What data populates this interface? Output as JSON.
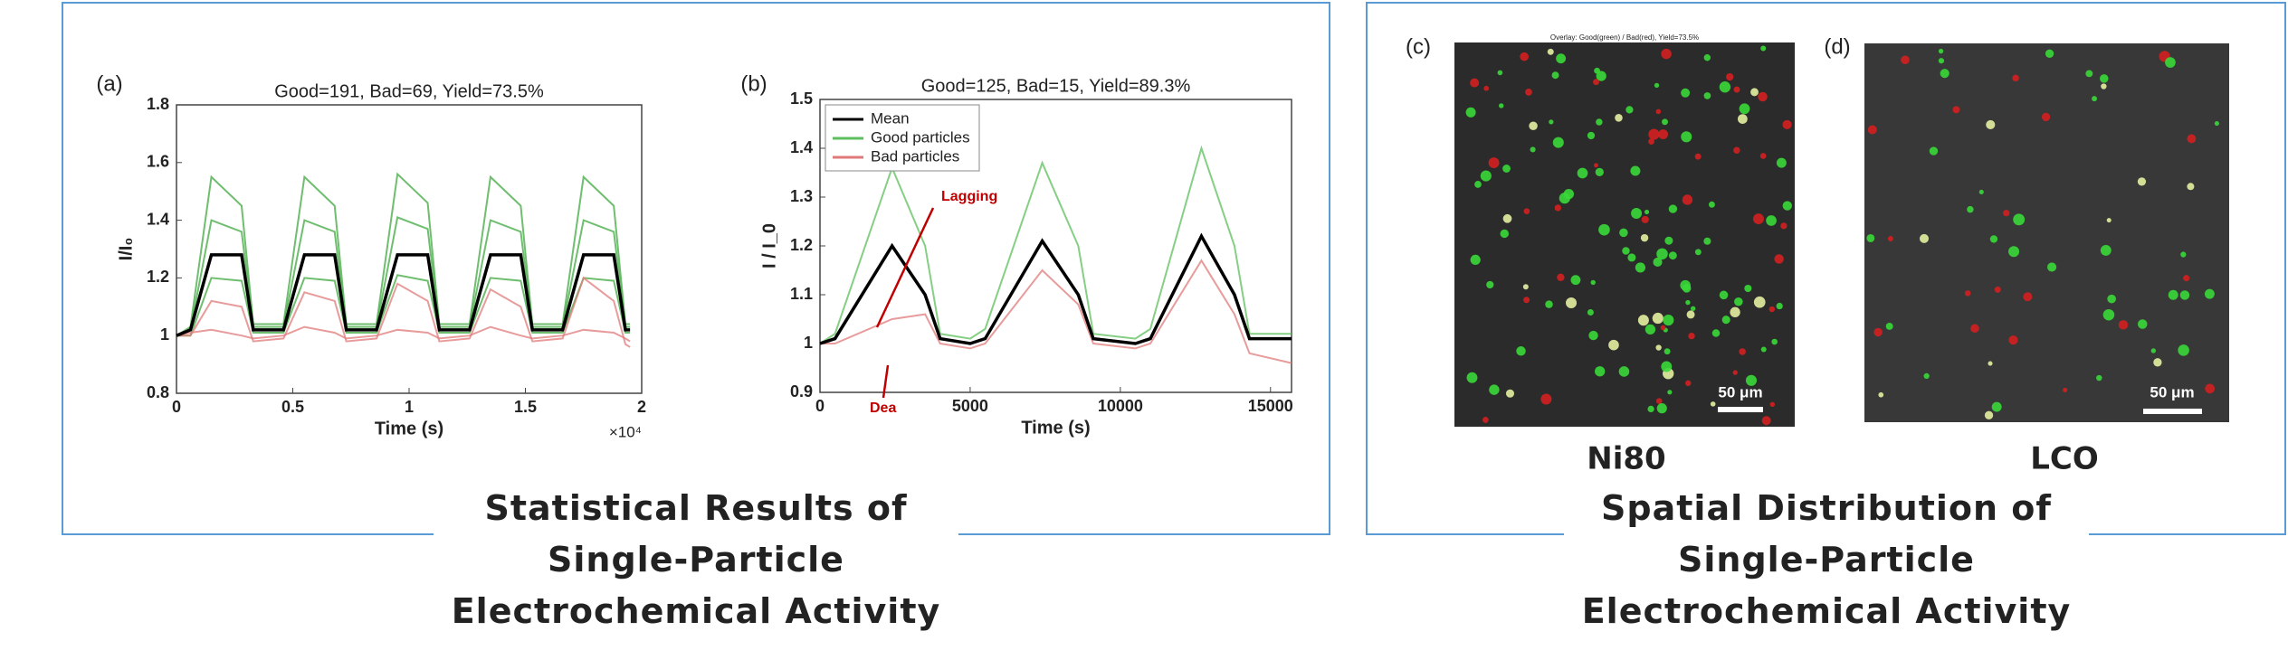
{
  "chart_data": [
    {
      "type": "line",
      "panel_label": "(a)",
      "title": "Good=191, Bad=69, Yield=73.5%",
      "x_label": "Time (s)",
      "y_label": "I/I₀",
      "x_offset_label": "×10⁴",
      "x": [
        0,
        600,
        1500,
        2800,
        3300,
        4600,
        5500,
        6800,
        7300,
        8600,
        9500,
        10800,
        11300,
        12600,
        13500,
        14800,
        15300,
        16600,
        17500,
        18800,
        19300,
        19500
      ],
      "xlim": [
        0,
        20000
      ],
      "xticks": [
        0,
        {
          "value": 5000,
          "label": "0.5"
        },
        {
          "value": 10000,
          "label": "1"
        },
        {
          "value": 15000,
          "label": "1.5"
        },
        {
          "value": 20000,
          "label": "2"
        }
      ],
      "ylim": [
        0.8,
        1.8
      ],
      "yticks": [
        0.8,
        1,
        1.2,
        1.4,
        1.6,
        1.8
      ],
      "series": [
        {
          "color": "#3fa83f",
          "values": [
            1.0,
            1.03,
            1.55,
            1.45,
            1.04,
            1.04,
            1.55,
            1.45,
            1.04,
            1.04,
            1.56,
            1.46,
            1.04,
            1.04,
            1.55,
            1.45,
            1.04,
            1.04,
            1.55,
            1.45,
            1.04,
            1.04
          ]
        },
        {
          "color": "#3fa83f",
          "values": [
            1.0,
            1.02,
            1.4,
            1.36,
            1.03,
            1.03,
            1.4,
            1.36,
            1.03,
            1.03,
            1.41,
            1.37,
            1.03,
            1.03,
            1.4,
            1.36,
            1.03,
            1.03,
            1.4,
            1.36,
            1.03,
            1.03
          ]
        },
        {
          "color": "#3fa83f",
          "values": [
            1.0,
            1.0,
            1.2,
            1.19,
            1.01,
            1.01,
            1.2,
            1.19,
            1.01,
            1.01,
            1.21,
            1.19,
            1.01,
            1.01,
            1.2,
            1.19,
            1.01,
            1.01,
            1.2,
            1.19,
            1.01,
            1.01
          ]
        },
        {
          "color": "#e07a7a",
          "values": [
            1.0,
            1.0,
            1.12,
            1.1,
            0.98,
            0.99,
            1.15,
            1.12,
            0.98,
            0.99,
            1.18,
            1.12,
            0.98,
            0.99,
            1.16,
            1.1,
            0.98,
            0.99,
            1.2,
            1.12,
            0.97,
            0.96
          ]
        },
        {
          "color": "#e07a7a",
          "values": [
            1.0,
            1.01,
            1.02,
            1.0,
            0.99,
            1.0,
            1.03,
            1.01,
            0.99,
            1.0,
            1.02,
            1.01,
            0.99,
            1.0,
            1.03,
            1.0,
            0.99,
            1.0,
            1.02,
            1.01,
            0.99,
            0.98
          ]
        },
        {
          "color": "#000000",
          "values": [
            1.0,
            1.02,
            1.28,
            1.28,
            1.02,
            1.02,
            1.28,
            1.28,
            1.02,
            1.02,
            1.28,
            1.28,
            1.02,
            1.02,
            1.28,
            1.28,
            1.02,
            1.02,
            1.28,
            1.28,
            1.02,
            1.02
          ]
        }
      ]
    },
    {
      "type": "line",
      "panel_label": "(b)",
      "title": "Good=125, Bad=15, Yield=89.3%",
      "x_label": "Time (s)",
      "y_label": "I / I_0",
      "x": [
        0,
        500,
        2400,
        3500,
        4000,
        5000,
        5500,
        7400,
        8600,
        9100,
        10500,
        11000,
        12700,
        13800,
        14300,
        15700
      ],
      "xlim": [
        0,
        15700
      ],
      "xticks": [
        0,
        5000,
        10000,
        15000
      ],
      "ylim": [
        0.9,
        1.5
      ],
      "yticks": [
        0.9,
        1,
        1.1,
        1.2,
        1.3,
        1.4,
        1.5
      ],
      "legend": "upper left",
      "annotations": [
        "Lagging",
        "Dea"
      ],
      "series": [
        {
          "name": "Mean",
          "color": "#000000",
          "values": [
            1.0,
            1.01,
            1.2,
            1.1,
            1.01,
            1.0,
            1.01,
            1.21,
            1.1,
            1.01,
            1.0,
            1.01,
            1.22,
            1.1,
            1.01,
            1.01
          ]
        },
        {
          "name": "Good particles",
          "color": "#5cbf5c",
          "values": [
            1.0,
            1.02,
            1.36,
            1.2,
            1.02,
            1.01,
            1.03,
            1.37,
            1.2,
            1.02,
            1.01,
            1.03,
            1.4,
            1.2,
            1.02,
            1.02
          ]
        },
        {
          "name": "Bad particles",
          "color": "#e07a7a",
          "values": [
            1.0,
            1.0,
            1.05,
            1.06,
            1.0,
            0.99,
            1.0,
            1.15,
            1.08,
            1.0,
            0.99,
            1.0,
            1.17,
            1.06,
            0.98,
            0.96
          ]
        }
      ]
    }
  ],
  "panels": {
    "c": {
      "label": "(c)",
      "caption": "Ni80",
      "scale_bar": "50 μm",
      "overlay_title": "Overlay: Good(green) / Bad(red), Yield=73.5%"
    },
    "d": {
      "label": "(d)",
      "caption": "LCO",
      "scale_bar": "50 μm"
    }
  },
  "captions": {
    "left": [
      "Statistical Results of",
      "Single-Particle",
      "Electrochemical Activity"
    ],
    "right": [
      "Spatial Distribution of",
      "Single-Particle",
      "Electrochemical Activity"
    ]
  }
}
